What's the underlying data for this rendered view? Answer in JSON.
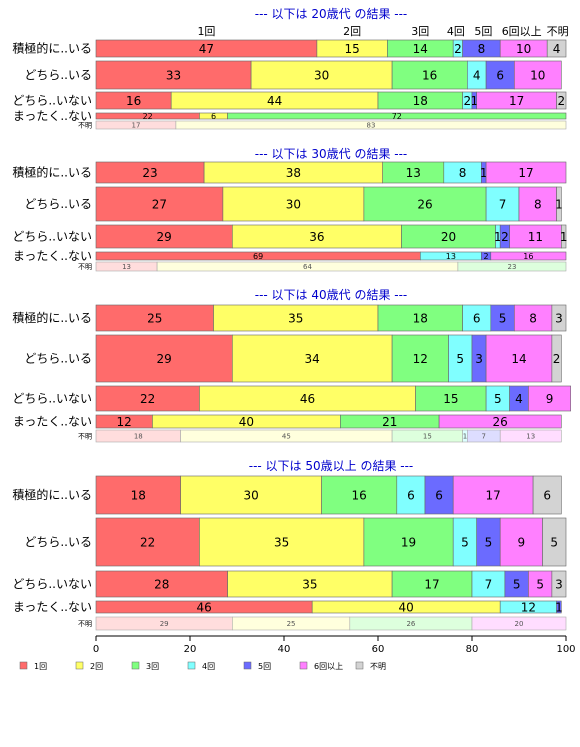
{
  "chart_data": {
    "type": "bar",
    "orientation": "horizontal",
    "stacked": true,
    "xlim": [
      0,
      100
    ],
    "x_ticks": [
      "0",
      "20",
      "40",
      "60",
      "80",
      "100"
    ],
    "colors": [
      "#ff6b6b",
      "#ffff66",
      "#80ff80",
      "#80ffff",
      "#6b6bff",
      "#ff80ff",
      "#d3d3d3"
    ],
    "legend": [
      "1回",
      "2回",
      "3回",
      "4回",
      "5回",
      "6回以上",
      "不明"
    ],
    "legend_position": "bottom",
    "category_headers": [
      "1回",
      "2回",
      "3回",
      "4回",
      "5回",
      "6回以上",
      "不明"
    ],
    "panels": [
      {
        "title": "--- 以下は 20歳代 の結果 ---",
        "rows": [
          {
            "label": "積極的に..いる",
            "values": [
              47,
              15,
              14,
              2,
              8,
              10,
              4
            ]
          },
          {
            "label": "どちら..いる",
            "values": [
              33,
              30,
              16,
              4,
              6,
              10,
              0
            ]
          },
          {
            "label": "どちら..いない",
            "values": [
              16,
              44,
              18,
              2,
              1,
              17,
              2
            ]
          },
          {
            "label": "まったく..ない",
            "values": [
              22,
              6,
              72,
              0,
              0,
              0,
              0
            ]
          },
          {
            "label": "不明",
            "values": [
              17,
              83,
              0,
              0,
              0,
              0,
              0
            ]
          }
        ]
      },
      {
        "title": "--- 以下は 30歳代 の結果 ---",
        "rows": [
          {
            "label": "積極的に..いる",
            "values": [
              23,
              38,
              13,
              8,
              1,
              17,
              0
            ]
          },
          {
            "label": "どちら..いる",
            "values": [
              27,
              30,
              26,
              7,
              0,
              8,
              1
            ]
          },
          {
            "label": "どちら..いない",
            "values": [
              29,
              36,
              20,
              1,
              2,
              11,
              1
            ]
          },
          {
            "label": "まったく..ない",
            "values": [
              69,
              0,
              0,
              13,
              2,
              16,
              0
            ]
          },
          {
            "label": "不明",
            "values": [
              13,
              64,
              23,
              0,
              0,
              0,
              0
            ]
          }
        ]
      },
      {
        "title": "--- 以下は 40歳代 の結果 ---",
        "rows": [
          {
            "label": "積極的に..いる",
            "values": [
              25,
              35,
              18,
              6,
              5,
              8,
              3
            ]
          },
          {
            "label": "どちら..いる",
            "values": [
              29,
              34,
              12,
              5,
              3,
              14,
              2
            ]
          },
          {
            "label": "どちら..いない",
            "values": [
              22,
              46,
              15,
              5,
              4,
              9,
              0
            ]
          },
          {
            "label": "まったく..ない",
            "values": [
              12,
              40,
              21,
              0,
              0,
              26,
              0
            ]
          },
          {
            "label": "不明",
            "values": [
              18,
              45,
              15,
              1,
              7,
              13,
              0
            ]
          }
        ]
      },
      {
        "title": "--- 以下は 50歳以上 の結果 ---",
        "rows": [
          {
            "label": "積極的に..いる",
            "values": [
              18,
              30,
              16,
              6,
              6,
              17,
              6
            ]
          },
          {
            "label": "どちら..いる",
            "values": [
              22,
              35,
              19,
              5,
              5,
              9,
              5
            ]
          },
          {
            "label": "どちら..いない",
            "values": [
              28,
              35,
              17,
              7,
              5,
              5,
              3
            ]
          },
          {
            "label": "まったく..ない",
            "values": [
              46,
              40,
              0,
              12,
              1,
              0,
              0
            ]
          },
          {
            "label": "不明",
            "values": [
              29,
              25,
              26,
              0,
              0,
              20,
              0
            ]
          }
        ]
      }
    ]
  }
}
